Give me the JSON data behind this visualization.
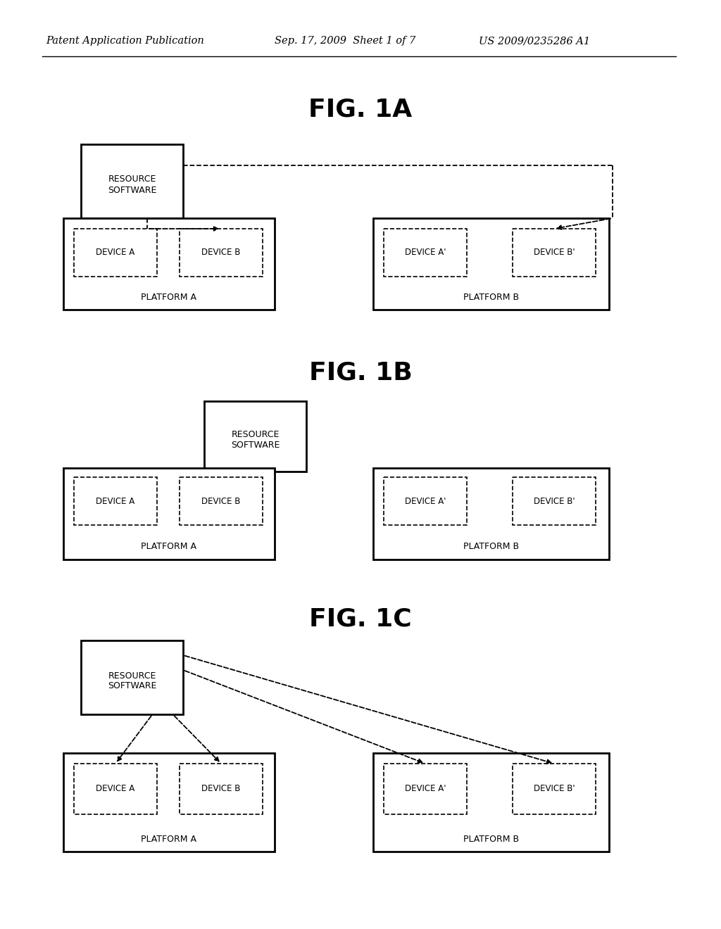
{
  "bg_color": "#ffffff",
  "header_left": "Patent Application Publication",
  "header_mid": "Sep. 17, 2009  Sheet 1 of 7",
  "header_right": "US 2009/0235286 A1",
  "fig1a_title": "FIG. 1A",
  "fig1b_title": "FIG. 1B",
  "fig1c_title": "FIG. 1C",
  "title_fontsize": 26,
  "label_fontsize": 9,
  "platform_fontsize": 9,
  "header_fontsize": 10.5
}
